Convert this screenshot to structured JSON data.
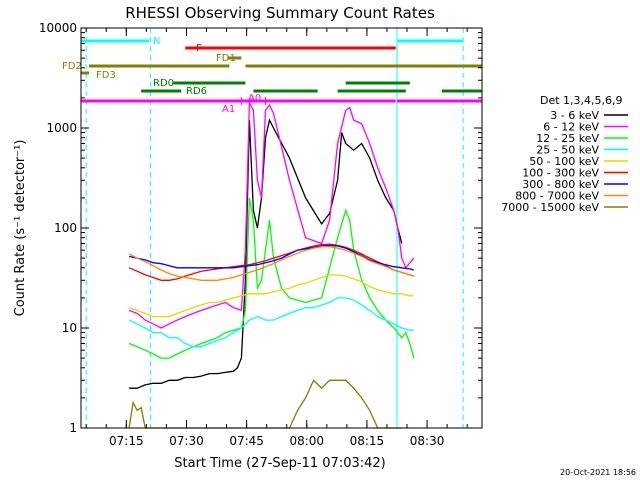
{
  "chart_data": {
    "type": "line",
    "title": "RHESSI Observing Summary Count Rates",
    "xlabel": "Start Time (27-Sep-11 07:03:42)",
    "ylabel": "Count Rate (s⁻¹ detector⁻¹)",
    "x_unit": "minutes after 07:03:42",
    "xlim": [
      0,
      100
    ],
    "ylim": [
      1,
      10000
    ],
    "yscale": "log",
    "x_ticks": [
      "07:15",
      "07:30",
      "07:45",
      "08:00",
      "08:15",
      "08:30"
    ],
    "y_ticks": [
      "1",
      "10",
      "100",
      "1000",
      "10000"
    ],
    "legend_title": "Det 1,3,4,5,6,9",
    "legend_position": "right",
    "footer": "20-Oct-2021 18:56",
    "series": [
      {
        "name": "3 - 6 keV",
        "color": "#000000",
        "x": [
          12,
          14,
          16,
          18,
          20,
          22,
          24,
          26,
          28,
          30,
          32,
          34,
          36,
          38,
          39,
          40,
          41,
          42,
          43,
          44,
          45,
          46,
          47,
          48,
          52,
          56,
          60,
          62,
          64,
          65,
          66,
          68,
          70,
          72,
          74,
          76,
          78,
          79,
          80
        ],
        "y": [
          2.5,
          2.5,
          2.7,
          2.8,
          2.8,
          3,
          3,
          3.2,
          3.2,
          3.3,
          3.5,
          3.5,
          3.6,
          3.7,
          4,
          5,
          30,
          1200,
          150,
          100,
          200,
          800,
          1200,
          1000,
          500,
          200,
          110,
          140,
          300,
          900,
          700,
          600,
          700,
          500,
          300,
          200,
          150,
          100,
          70
        ]
      },
      {
        "name": "6 - 12 keV",
        "color": "#ff00ff",
        "x": [
          12,
          14,
          16,
          18,
          20,
          22,
          24,
          26,
          28,
          30,
          32,
          34,
          36,
          38,
          40,
          41,
          42,
          43,
          44,
          45,
          46,
          47,
          48,
          52,
          56,
          60,
          62,
          64,
          66,
          67,
          68,
          70,
          72,
          74,
          76,
          78,
          79,
          80,
          81,
          83
        ],
        "y": [
          15,
          14,
          12,
          11,
          10,
          11,
          12,
          13,
          14,
          15,
          16,
          17,
          18,
          16,
          15,
          60,
          1800,
          1500,
          300,
          200,
          1500,
          1700,
          1400,
          300,
          80,
          70,
          120,
          700,
          1500,
          1600,
          1200,
          1100,
          700,
          400,
          250,
          150,
          100,
          50,
          40,
          50
        ]
      },
      {
        "name": "12 - 25 keV",
        "color": "#00ff00",
        "x": [
          12,
          14,
          16,
          18,
          20,
          22,
          24,
          26,
          28,
          30,
          32,
          34,
          36,
          38,
          40,
          41,
          42,
          43,
          44,
          45,
          46,
          47,
          48,
          50,
          52,
          56,
          60,
          62,
          64,
          66,
          67,
          68,
          70,
          72,
          74,
          76,
          78,
          80,
          81,
          82,
          83
        ],
        "y": [
          7,
          6.5,
          6,
          5.5,
          5,
          5,
          5.5,
          6,
          6.5,
          7,
          7.5,
          8,
          9,
          9.5,
          10,
          15,
          200,
          120,
          25,
          30,
          60,
          120,
          50,
          25,
          20,
          18,
          20,
          40,
          80,
          150,
          120,
          60,
          30,
          20,
          15,
          12,
          10,
          8,
          9,
          7,
          5
        ]
      },
      {
        "name": "25 - 50 keV",
        "color": "#00ffff",
        "x": [
          12,
          14,
          16,
          18,
          20,
          22,
          24,
          26,
          28,
          30,
          32,
          34,
          36,
          38,
          40,
          42,
          44,
          46,
          48,
          50,
          52,
          54,
          56,
          58,
          60,
          62,
          64,
          66,
          68,
          70,
          72,
          74,
          76,
          78,
          80,
          82,
          83
        ],
        "y": [
          12,
          11,
          10,
          9,
          9,
          8,
          8,
          7,
          6.5,
          6.5,
          7,
          7.5,
          8,
          9,
          10,
          12,
          13,
          12,
          12,
          13,
          14,
          15,
          16,
          16,
          17,
          18,
          20,
          20,
          19,
          17,
          15,
          13,
          12,
          11,
          10,
          9.5,
          9.5
        ]
      },
      {
        "name": "50 - 100 keV",
        "color": "#dddd00",
        "x": [
          12,
          14,
          16,
          18,
          20,
          22,
          24,
          26,
          28,
          30,
          32,
          34,
          36,
          38,
          40,
          42,
          44,
          46,
          48,
          50,
          52,
          54,
          56,
          58,
          60,
          62,
          64,
          66,
          68,
          70,
          72,
          74,
          76,
          78,
          80,
          82,
          83
        ],
        "y": [
          16,
          15,
          14,
          13,
          13,
          13,
          14,
          15,
          16,
          17,
          18,
          18,
          19,
          20,
          21,
          22,
          22,
          22,
          23,
          24,
          25,
          27,
          28,
          30,
          32,
          34,
          34,
          33,
          31,
          29,
          26,
          24,
          23,
          22,
          22,
          21,
          21
        ]
      },
      {
        "name": "100 - 300 keV",
        "color": "#ff0000",
        "x": [
          12,
          14,
          16,
          18,
          20,
          22,
          24,
          26,
          28,
          30,
          32,
          34,
          36,
          38,
          40,
          42,
          44,
          46,
          48,
          50,
          52,
          54,
          56,
          58,
          60,
          62,
          64,
          66,
          68,
          70,
          72,
          74,
          76,
          78,
          80,
          82,
          83
        ],
        "y": [
          40,
          37,
          34,
          32,
          30,
          30,
          31,
          33,
          35,
          37,
          38,
          39,
          40,
          41,
          42,
          43,
          45,
          47,
          50,
          53,
          56,
          60,
          63,
          66,
          68,
          69,
          67,
          64,
          60,
          55,
          50,
          46,
          42,
          38,
          36,
          34,
          33
        ]
      },
      {
        "name": "300 - 800 keV",
        "color": "#0000ff",
        "x": [
          12,
          14,
          16,
          18,
          20,
          22,
          24,
          26,
          28,
          30,
          32,
          34,
          36,
          38,
          40,
          42,
          44,
          46,
          48,
          50,
          52,
          54,
          56,
          58,
          60,
          62,
          64,
          66,
          68,
          70,
          72,
          74,
          76,
          78,
          80,
          82,
          83
        ],
        "y": [
          52,
          50,
          48,
          45,
          44,
          42,
          40,
          40,
          40,
          40,
          40,
          40,
          40,
          40,
          41,
          42,
          43,
          45,
          47,
          50,
          55,
          60,
          62,
          64,
          66,
          67,
          66,
          63,
          58,
          53,
          48,
          45,
          43,
          41,
          40,
          39,
          38
        ]
      },
      {
        "name": "800 - 7000 keV",
        "color": "#ff8800",
        "x": [
          12,
          14,
          16,
          18,
          20,
          22,
          24,
          26,
          28,
          30,
          32,
          34,
          36,
          38,
          40,
          42,
          44,
          46,
          48,
          50,
          52,
          54,
          56,
          58,
          60,
          62,
          64,
          66,
          68,
          70,
          72,
          74,
          76,
          78,
          80,
          82,
          83
        ],
        "y": [
          55,
          50,
          46,
          42,
          38,
          35,
          33,
          32,
          31,
          30,
          30,
          30,
          31,
          32,
          34,
          36,
          38,
          41,
          44,
          48,
          52,
          56,
          60,
          63,
          65,
          65,
          63,
          60,
          56,
          52,
          47,
          44,
          41,
          38,
          36,
          34,
          33
        ]
      },
      {
        "name": "7000 - 15000 keV",
        "color": "#808000",
        "x": [
          12,
          13,
          14,
          15,
          16,
          18,
          20,
          22,
          24,
          26,
          28,
          30,
          32,
          34,
          36,
          38,
          40,
          42,
          44,
          46,
          48,
          50,
          52,
          54,
          56,
          58,
          60,
          62,
          64,
          66,
          68,
          70,
          72,
          74,
          76,
          78,
          80
        ],
        "y": [
          1,
          1.8,
          1.5,
          1.6,
          1,
          1,
          1,
          1,
          1,
          1,
          1,
          1,
          1,
          1,
          1,
          1,
          1,
          1,
          1,
          1,
          1,
          1,
          1,
          1.5,
          2,
          3,
          2.5,
          3,
          3,
          3,
          2.5,
          2,
          1.5,
          1,
          1,
          1,
          1
        ]
      }
    ],
    "state_bars": [
      {
        "label": "N",
        "color": "#00ffff"
      },
      {
        "label": "F",
        "color": "#ff0000"
      },
      {
        "label": "FD1",
        "color": "#808000"
      },
      {
        "label": "FD2",
        "color": "#808000"
      },
      {
        "label": "FD3",
        "color": "#808000"
      },
      {
        "label": "RD0",
        "color": "#008000"
      },
      {
        "label": "RD6",
        "color": "#008000"
      },
      {
        "label": "A1",
        "color": "#ff00ff"
      },
      {
        "label": "A0",
        "color": "#ff00ff"
      }
    ]
  }
}
